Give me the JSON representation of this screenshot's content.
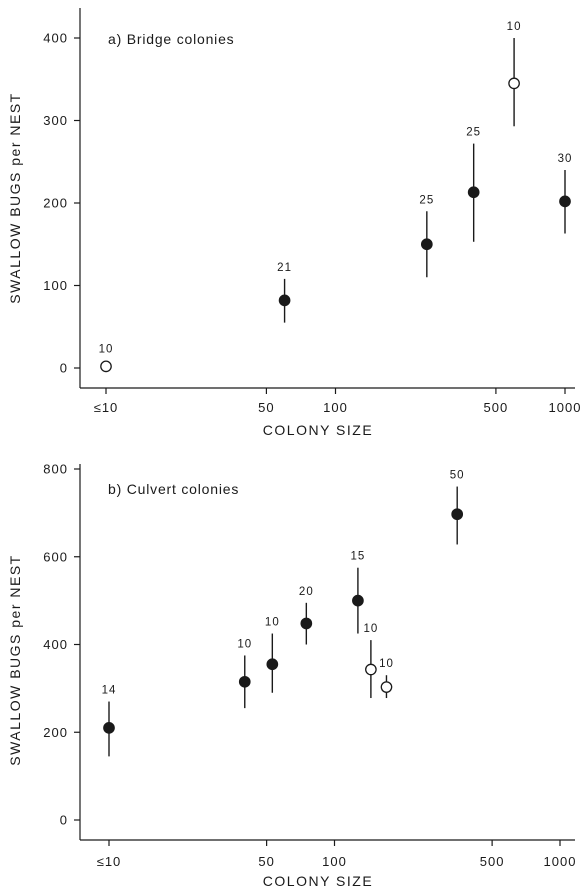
{
  "chart_data": [
    {
      "type": "scatter",
      "title": "a) Bridge colonies",
      "xlabel": "COLONY SIZE",
      "ylabel": "SWALLOW BUGS per NEST",
      "x_scale": "log",
      "xlim": [
        10,
        1000
      ],
      "ylim": [
        0,
        400
      ],
      "x_ticks": [
        "≤10",
        "50",
        "100",
        "500",
        "1000"
      ],
      "y_ticks": [
        "0",
        "100",
        "200",
        "300",
        "400"
      ],
      "points": [
        {
          "x": 10,
          "y": 2,
          "low": 2,
          "high": 2,
          "n": "10",
          "marker": "open"
        },
        {
          "x": 60,
          "y": 82,
          "low": 55,
          "high": 108,
          "n": "21",
          "marker": "filled"
        },
        {
          "x": 250,
          "y": 150,
          "low": 110,
          "high": 190,
          "n": "25",
          "marker": "filled"
        },
        {
          "x": 400,
          "y": 213,
          "low": 153,
          "high": 272,
          "n": "25",
          "marker": "filled"
        },
        {
          "x": 600,
          "y": 345,
          "low": 293,
          "high": 400,
          "n": "10",
          "marker": "open"
        },
        {
          "x": 1000,
          "y": 202,
          "low": 163,
          "high": 240,
          "n": "30",
          "marker": "filled"
        }
      ]
    },
    {
      "type": "scatter",
      "title": "b) Culvert colonies",
      "xlabel": "COLONY SIZE",
      "ylabel": "SWALLOW BUGS per NEST",
      "x_scale": "log",
      "xlim": [
        10,
        1000
      ],
      "ylim": [
        0,
        800
      ],
      "x_ticks": [
        "≤10",
        "50",
        "100",
        "500",
        "1000"
      ],
      "y_ticks": [
        "0",
        "200",
        "400",
        "600",
        "800"
      ],
      "points": [
        {
          "x": 10,
          "y": 210,
          "low": 145,
          "high": 270,
          "n": "14",
          "marker": "filled"
        },
        {
          "x": 40,
          "y": 315,
          "low": 255,
          "high": 375,
          "n": "10",
          "marker": "filled"
        },
        {
          "x": 53,
          "y": 355,
          "low": 290,
          "high": 425,
          "n": "10",
          "marker": "filled"
        },
        {
          "x": 75,
          "y": 448,
          "low": 400,
          "high": 495,
          "n": "20",
          "marker": "filled"
        },
        {
          "x": 127,
          "y": 500,
          "low": 425,
          "high": 575,
          "n": "15",
          "marker": "filled"
        },
        {
          "x": 145,
          "y": 343,
          "low": 278,
          "high": 410,
          "n": "10",
          "marker": "open"
        },
        {
          "x": 170,
          "y": 303,
          "low": 278,
          "high": 330,
          "n": "10",
          "marker": "open"
        },
        {
          "x": 350,
          "y": 697,
          "low": 628,
          "high": 760,
          "n": "50",
          "marker": "filled"
        }
      ]
    }
  ]
}
